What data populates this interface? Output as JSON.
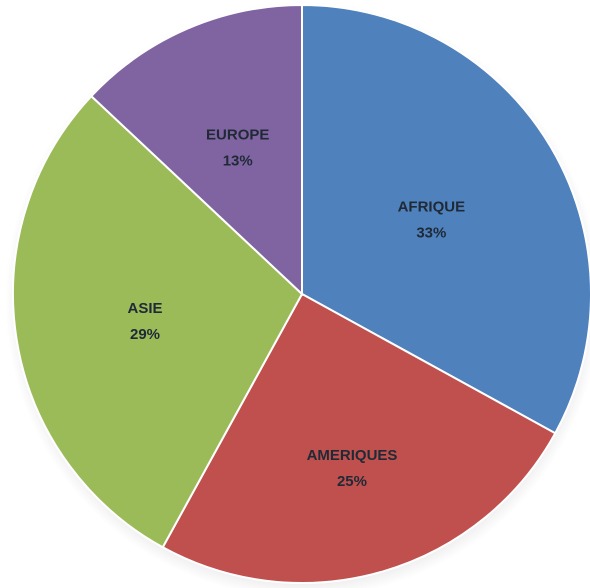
{
  "chart_data": {
    "type": "pie",
    "title": "",
    "slices": [
      {
        "label": "AFRIQUE",
        "value": 33,
        "value_label": "33%",
        "color": "#4f81bd"
      },
      {
        "label": "AMERIQUES",
        "value": 25,
        "value_label": "25%",
        "color": "#c0504d"
      },
      {
        "label": "ASIE",
        "value": 29,
        "value_label": "29%",
        "color": "#9bbb59"
      },
      {
        "label": "EUROPE",
        "value": 13,
        "value_label": "13%",
        "color": "#8064a2"
      }
    ],
    "start": "12 o'clock",
    "direction": "clockwise",
    "legend": "none"
  }
}
